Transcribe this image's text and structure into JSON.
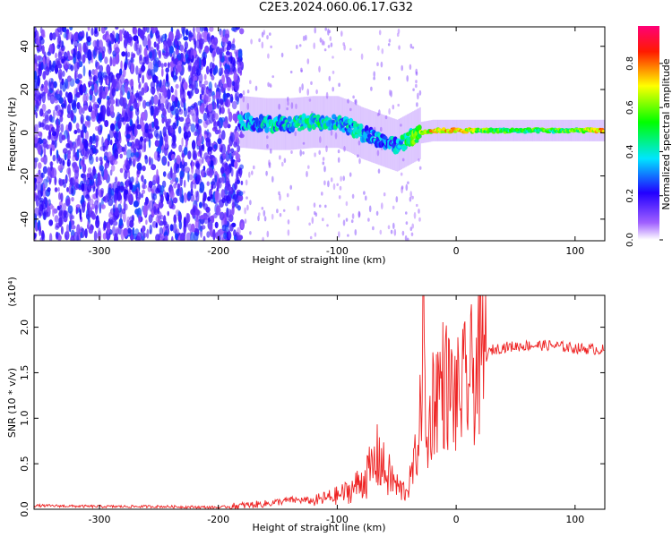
{
  "title": "C2E3.2024.060.06.17.G32",
  "chart_data": [
    {
      "type": "heatmap",
      "xlabel": "Height of straight line (km)",
      "ylabel": "Frequency (Hz)",
      "xlim": [
        -355,
        125
      ],
      "ylim": [
        -50,
        49
      ],
      "xticks": [
        -300,
        -200,
        -100,
        0,
        100
      ],
      "yticks": [
        -40,
        -20,
        0,
        20,
        40
      ],
      "colorbar": {
        "label": "Normalized spectral amplitude",
        "range": [
          0.0,
          0.97
        ],
        "ticks": [
          0.0,
          0.2,
          0.4,
          0.6,
          0.8
        ],
        "colormap": [
          "#ffffff",
          "#7f00ff",
          "#0000ff",
          "#00ffff",
          "#00ff00",
          "#ffff00",
          "#ff0000",
          "#ff00ff"
        ]
      },
      "trace": {
        "x": [
          -180,
          -160,
          -140,
          -120,
          -100,
          -90,
          -80,
          -70,
          -60,
          -50,
          -40,
          -30,
          -20,
          -10,
          0,
          20,
          40,
          60,
          80,
          100,
          125
        ],
        "freq": [
          5,
          4,
          4,
          5,
          5,
          3,
          0,
          -2,
          -4,
          -6,
          -3,
          0,
          1,
          1,
          1,
          1,
          1,
          1,
          1,
          1,
          1
        ],
        "amplitude": [
          0.3,
          0.35,
          0.35,
          0.4,
          0.35,
          0.35,
          0.35,
          0.3,
          0.3,
          0.3,
          0.45,
          0.6,
          0.7,
          0.7,
          0.75,
          0.55,
          0.5,
          0.5,
          0.5,
          0.55,
          0.75
        ]
      }
    },
    {
      "type": "line",
      "xlabel": "Height of straight line (km)",
      "ylabel": "SNR (10 * v/v)",
      "multiplier": "(x10⁴)",
      "xlim": [
        -355,
        125
      ],
      "ylim": [
        0,
        2.35
      ],
      "xticks": [
        -300,
        -200,
        -100,
        0,
        100
      ],
      "yticks": [
        0.0,
        0.5,
        1.0,
        1.5,
        2.0
      ],
      "series": [
        {
          "color": "#ee2222",
          "x": [
            -355,
            -300,
            -250,
            -200,
            -180,
            -160,
            -150,
            -140,
            -130,
            -120,
            -110,
            -100,
            -90,
            -80,
            -70,
            -65,
            -60,
            -55,
            -50,
            -45,
            -40,
            -35,
            -30,
            -28,
            -25,
            -20,
            -15,
            -10,
            -5,
            0,
            10,
            20,
            30,
            40,
            60,
            80,
            100,
            125
          ],
          "y": [
            0.04,
            0.03,
            0.03,
            0.02,
            0.04,
            0.06,
            0.08,
            0.1,
            0.1,
            0.09,
            0.12,
            0.15,
            0.2,
            0.3,
            0.45,
            0.6,
            0.4,
            0.35,
            0.25,
            0.2,
            0.25,
            0.5,
            1.0,
            2.2,
            0.6,
            1.2,
            1.35,
            1.4,
            1.3,
            1.2,
            1.4,
            1.6,
            1.75,
            1.78,
            1.8,
            1.8,
            1.77,
            1.75
          ]
        }
      ]
    }
  ]
}
